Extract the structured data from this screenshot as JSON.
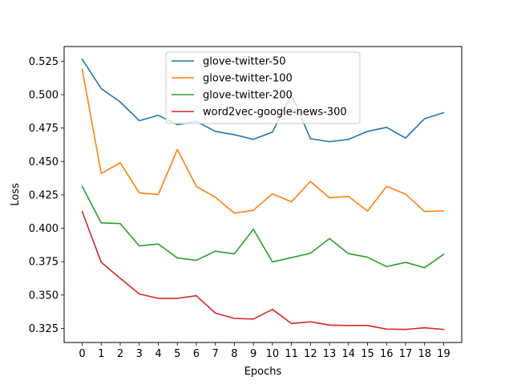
{
  "chart_data": {
    "type": "line",
    "title": "",
    "xlabel": "Epochs",
    "ylabel": "Loss",
    "x": [
      0,
      1,
      2,
      3,
      4,
      5,
      6,
      7,
      8,
      9,
      10,
      11,
      12,
      13,
      14,
      15,
      16,
      17,
      18,
      19
    ],
    "xticks": [
      "0",
      "1",
      "2",
      "3",
      "4",
      "5",
      "6",
      "7",
      "8",
      "9",
      "10",
      "11",
      "12",
      "13",
      "14",
      "15",
      "16",
      "17",
      "18",
      "19"
    ],
    "xlim": [
      -0.95,
      19.95
    ],
    "ylim": [
      0.3145,
      0.536
    ],
    "yticks": [
      0.325,
      0.35,
      0.375,
      0.4,
      0.425,
      0.45,
      0.475,
      0.5,
      0.525
    ],
    "ytick_labels": [
      "0.325",
      "0.350",
      "0.375",
      "0.400",
      "0.425",
      "0.450",
      "0.475",
      "0.500",
      "0.525"
    ],
    "grid": false,
    "legend_position": "top-center",
    "series": [
      {
        "name": "glove-twitter-50",
        "color": "#1f77b4",
        "values": [
          0.5265,
          0.5045,
          0.4945,
          0.4805,
          0.4845,
          0.4775,
          0.48,
          0.4725,
          0.47,
          0.4665,
          0.472,
          0.5,
          0.467,
          0.4648,
          0.4665,
          0.4725,
          0.4755,
          0.4675,
          0.482,
          0.4865
        ]
      },
      {
        "name": "glove-twitter-100",
        "color": "#ff7f0e",
        "values": [
          0.519,
          0.441,
          0.449,
          0.4265,
          0.4252,
          0.459,
          0.4313,
          0.4232,
          0.4113,
          0.4135,
          0.4258,
          0.4198,
          0.435,
          0.4228,
          0.4238,
          0.4128,
          0.4313,
          0.4255,
          0.4125,
          0.413
        ]
      },
      {
        "name": "glove-twitter-200",
        "color": "#2ca02c",
        "values": [
          0.4313,
          0.404,
          0.4035,
          0.3868,
          0.3882,
          0.3778,
          0.376,
          0.3828,
          0.3808,
          0.3993,
          0.3748,
          0.378,
          0.3813,
          0.3923,
          0.381,
          0.3783,
          0.3713,
          0.3745,
          0.3705,
          0.3805
        ]
      },
      {
        "name": "word2vec-google-news-300",
        "color": "#d62728",
        "values": [
          0.4125,
          0.3745,
          0.3625,
          0.3508,
          0.3475,
          0.3475,
          0.3495,
          0.3365,
          0.3325,
          0.332,
          0.3393,
          0.3287,
          0.33,
          0.3275,
          0.3272,
          0.3272,
          0.3245,
          0.3243,
          0.3255,
          0.3243
        ]
      }
    ]
  }
}
